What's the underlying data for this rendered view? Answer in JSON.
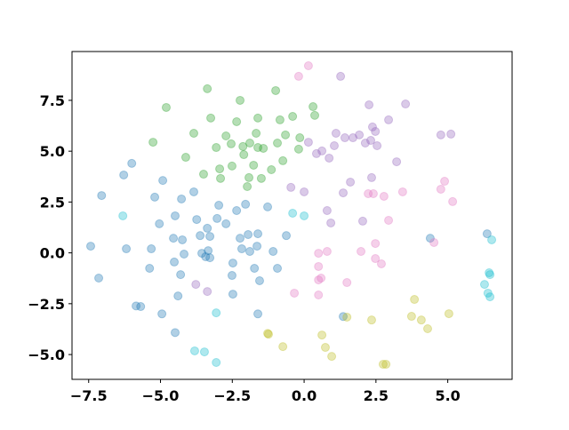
{
  "chart_data": {
    "type": "scatter",
    "xlim": [
      -8.08,
      7.24
    ],
    "ylim": [
      -6.22,
      9.9
    ],
    "xticks": [
      {
        "value": -7.5,
        "label": "−7.5"
      },
      {
        "value": -5,
        "label": "−5.0"
      },
      {
        "value": -2.5,
        "label": "−2.5"
      },
      {
        "value": 0,
        "label": "0.0"
      },
      2.5,
      {
        "value": 5,
        "label": "5.0"
      }
    ],
    "yticks": [
      {
        "value": -5,
        "label": "−5.0"
      },
      {
        "value": -2.5,
        "label": "−2.5"
      },
      {
        "value": 0,
        "label": "0.0"
      },
      2.5,
      {
        "value": 5,
        "label": "5.0"
      },
      7.5
    ],
    "alpha": 0.35,
    "grid": false,
    "series": [
      {
        "color": "#1f77b4",
        "x": [
          -7.43,
          -7.15,
          -7.05,
          -6.28,
          -6.0,
          -6.19,
          -5.85,
          -5.69,
          -5.38,
          -5.32,
          -5.2,
          -4.95,
          -5.04,
          -4.92,
          -4.55,
          -4.52,
          -4.49,
          -4.24,
          -4.49,
          -4.39,
          -4.3,
          -4.18,
          -4.27,
          -3.84,
          -3.74,
          -3.62,
          -3.56,
          -3.37,
          -3.28,
          -3.34,
          -3.43,
          -3.28,
          -2.97,
          -3.03,
          -2.72,
          -2.51,
          -2.48,
          -2.48,
          -2.35,
          -2.23,
          -2.17,
          -2.04,
          -1.95,
          -1.89,
          -1.73,
          -1.64,
          -1.55,
          -1.61,
          -1.61,
          -1.27,
          -1.08,
          -0.93,
          -0.62,
          4.39,
          1.36,
          6.37
        ],
        "y": [
          0.33,
          -1.24,
          2.82,
          3.83,
          4.4,
          0.2,
          -2.61,
          -2.64,
          -0.76,
          0.2,
          2.74,
          -3.0,
          1.43,
          3.56,
          0.72,
          -0.45,
          1.82,
          0.64,
          -3.92,
          -2.12,
          -1.07,
          -0.06,
          2.65,
          3.0,
          1.64,
          0.85,
          -0.02,
          1.21,
          0.81,
          0.11,
          -0.19,
          -0.24,
          2.34,
          1.69,
          1.43,
          -1.11,
          -0.5,
          -2.03,
          2.08,
          0.72,
          0.2,
          2.39,
          0.9,
          0.07,
          -0.76,
          0.33,
          -1.37,
          -3.0,
          0.94,
          2.26,
          0.07,
          -0.76,
          0.85,
          0.72,
          -3.13,
          0.94
        ]
      },
      {
        "color": "#2ca02c",
        "x": [
          -4.8,
          -5.26,
          -4.12,
          -3.84,
          -3.37,
          -3.25,
          -3.5,
          -3.06,
          -2.94,
          -2.72,
          -2.91,
          -2.51,
          -2.54,
          -2.35,
          -2.23,
          -2.13,
          -2.1,
          -1.98,
          -1.92,
          -1.89,
          -1.76,
          -1.61,
          -1.67,
          -1.61,
          -1.49,
          -1.42,
          -1.14,
          -0.99,
          -0.93,
          -0.84,
          -0.74,
          -0.65,
          -0.4,
          -0.15,
          -0.19,
          0.31,
          0.37
        ],
        "y": [
          7.15,
          5.44,
          4.7,
          5.88,
          8.07,
          6.63,
          3.87,
          5.18,
          4.13,
          5.75,
          3.66,
          4.27,
          5.36,
          6.45,
          7.5,
          5.23,
          4.83,
          3.26,
          3.7,
          5.4,
          4.31,
          6.63,
          5.88,
          5.18,
          3.66,
          5.14,
          4.09,
          7.98,
          5.4,
          6.54,
          4.53,
          5.8,
          6.71,
          5.66,
          5.1,
          7.19,
          6.76
        ]
      },
      {
        "color": "#9467bd",
        "x": [
          1.27,
          2.26,
          3.53,
          4.76,
          5.11,
          3.22,
          1.42,
          1.7,
          1.11,
          1.05,
          0.87,
          0.62,
          -0.46,
          0.0,
          0.8,
          0.93,
          1.36,
          1.61,
          2.04,
          2.35,
          2.38,
          2.32,
          2.13,
          1.92,
          2.48,
          2.94,
          2.54,
          0.15,
          0.43,
          -3.37,
          -3.77
        ],
        "y": [
          8.68,
          7.28,
          7.32,
          5.8,
          5.84,
          4.48,
          5.66,
          5.66,
          5.88,
          5.27,
          4.66,
          5.01,
          3.22,
          3.0,
          2.08,
          1.47,
          2.95,
          3.48,
          1.56,
          3.7,
          6.19,
          5.53,
          5.4,
          5.8,
          5.97,
          6.54,
          5.27,
          5.44,
          4.88,
          -1.9,
          -1.55
        ]
      },
      {
        "color": "#e377c2",
        "x": [
          -0.19,
          0.15,
          0.5,
          0.5,
          0.5,
          0.5,
          0.8,
          1.49,
          1.98,
          2.23,
          2.48,
          2.48,
          2.69,
          2.78,
          2.94,
          3.43,
          4.76,
          4.89,
          5.17,
          4.52,
          -0.34,
          0.59,
          2.41
        ],
        "y": [
          8.68,
          9.2,
          -0.02,
          -0.67,
          -1.33,
          -2.07,
          0.07,
          -1.46,
          0.07,
          2.91,
          0.46,
          -0.28,
          -0.54,
          2.78,
          1.6,
          3.0,
          3.13,
          3.52,
          2.52,
          0.51,
          -1.98,
          -1.24,
          2.91
        ]
      },
      {
        "color": "#bcbd22",
        "x": [
          -1.27,
          -1.24,
          -0.74,
          0.62,
          0.74,
          0.96,
          1.49,
          2.35,
          2.75,
          2.85,
          3.84,
          3.74,
          4.08,
          4.3,
          5.04
        ],
        "y": [
          -3.96,
          -4.0,
          -4.61,
          -4.04,
          -4.65,
          -5.09,
          -3.16,
          -3.3,
          -5.48,
          -5.48,
          -2.29,
          -3.12,
          -3.3,
          -3.73,
          -2.99
        ]
      },
      {
        "color": "#17becf",
        "x": [
          -6.31,
          -0.4,
          0.0,
          -3.06,
          -3.81,
          -3.47,
          -3.06,
          6.53,
          6.44,
          6.47,
          6.28,
          6.4,
          6.47
        ],
        "y": [
          1.82,
          1.95,
          1.82,
          -2.95,
          -4.82,
          -4.87,
          -5.39,
          0.64,
          -0.98,
          -1.07,
          -1.55,
          -1.98,
          -2.16
        ]
      }
    ]
  }
}
